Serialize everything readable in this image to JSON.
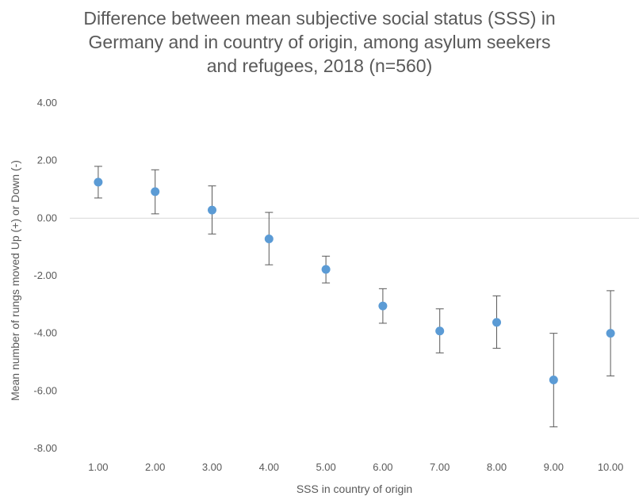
{
  "chart_data": {
    "type": "scatter",
    "title_lines": [
      "Difference between mean subjective social status (SSS) in",
      "Germany and in country of origin, among asylum seekers",
      "and refugees, 2018 (n=560)"
    ],
    "xlabel": "SSS in country of origin",
    "ylabel": "Mean number of rungs moved Up (+) or Down (-)",
    "x": [
      1,
      2,
      3,
      4,
      5,
      6,
      7,
      8,
      9,
      10
    ],
    "x_tick_labels": [
      "1.00",
      "2.00",
      "3.00",
      "4.00",
      "5.00",
      "6.00",
      "7.00",
      "8.00",
      "9.00",
      "10.00"
    ],
    "y": [
      1.25,
      0.92,
      0.28,
      -0.72,
      -1.78,
      -3.05,
      -3.92,
      -3.62,
      -5.62,
      -4.0
    ],
    "err_high": [
      1.8,
      1.68,
      1.12,
      0.2,
      -1.32,
      -2.45,
      -3.15,
      -2.7,
      -4.0,
      -2.52
    ],
    "err_low": [
      0.7,
      0.15,
      -0.55,
      -1.62,
      -2.25,
      -3.65,
      -4.68,
      -4.52,
      -7.25,
      -5.48
    ],
    "ylim": [
      -8,
      4
    ],
    "y_ticks": [
      4,
      2,
      0,
      -2,
      -4,
      -6,
      -8
    ],
    "y_tick_labels": [
      "4.00",
      "2.00",
      "0.00",
      "-2.00",
      "-4.00",
      "-6.00",
      "-8.00"
    ],
    "grid": false,
    "marker_color": "#5b9bd5",
    "errorbar_color": "#595959",
    "axis_color": "#d9d9d9"
  }
}
